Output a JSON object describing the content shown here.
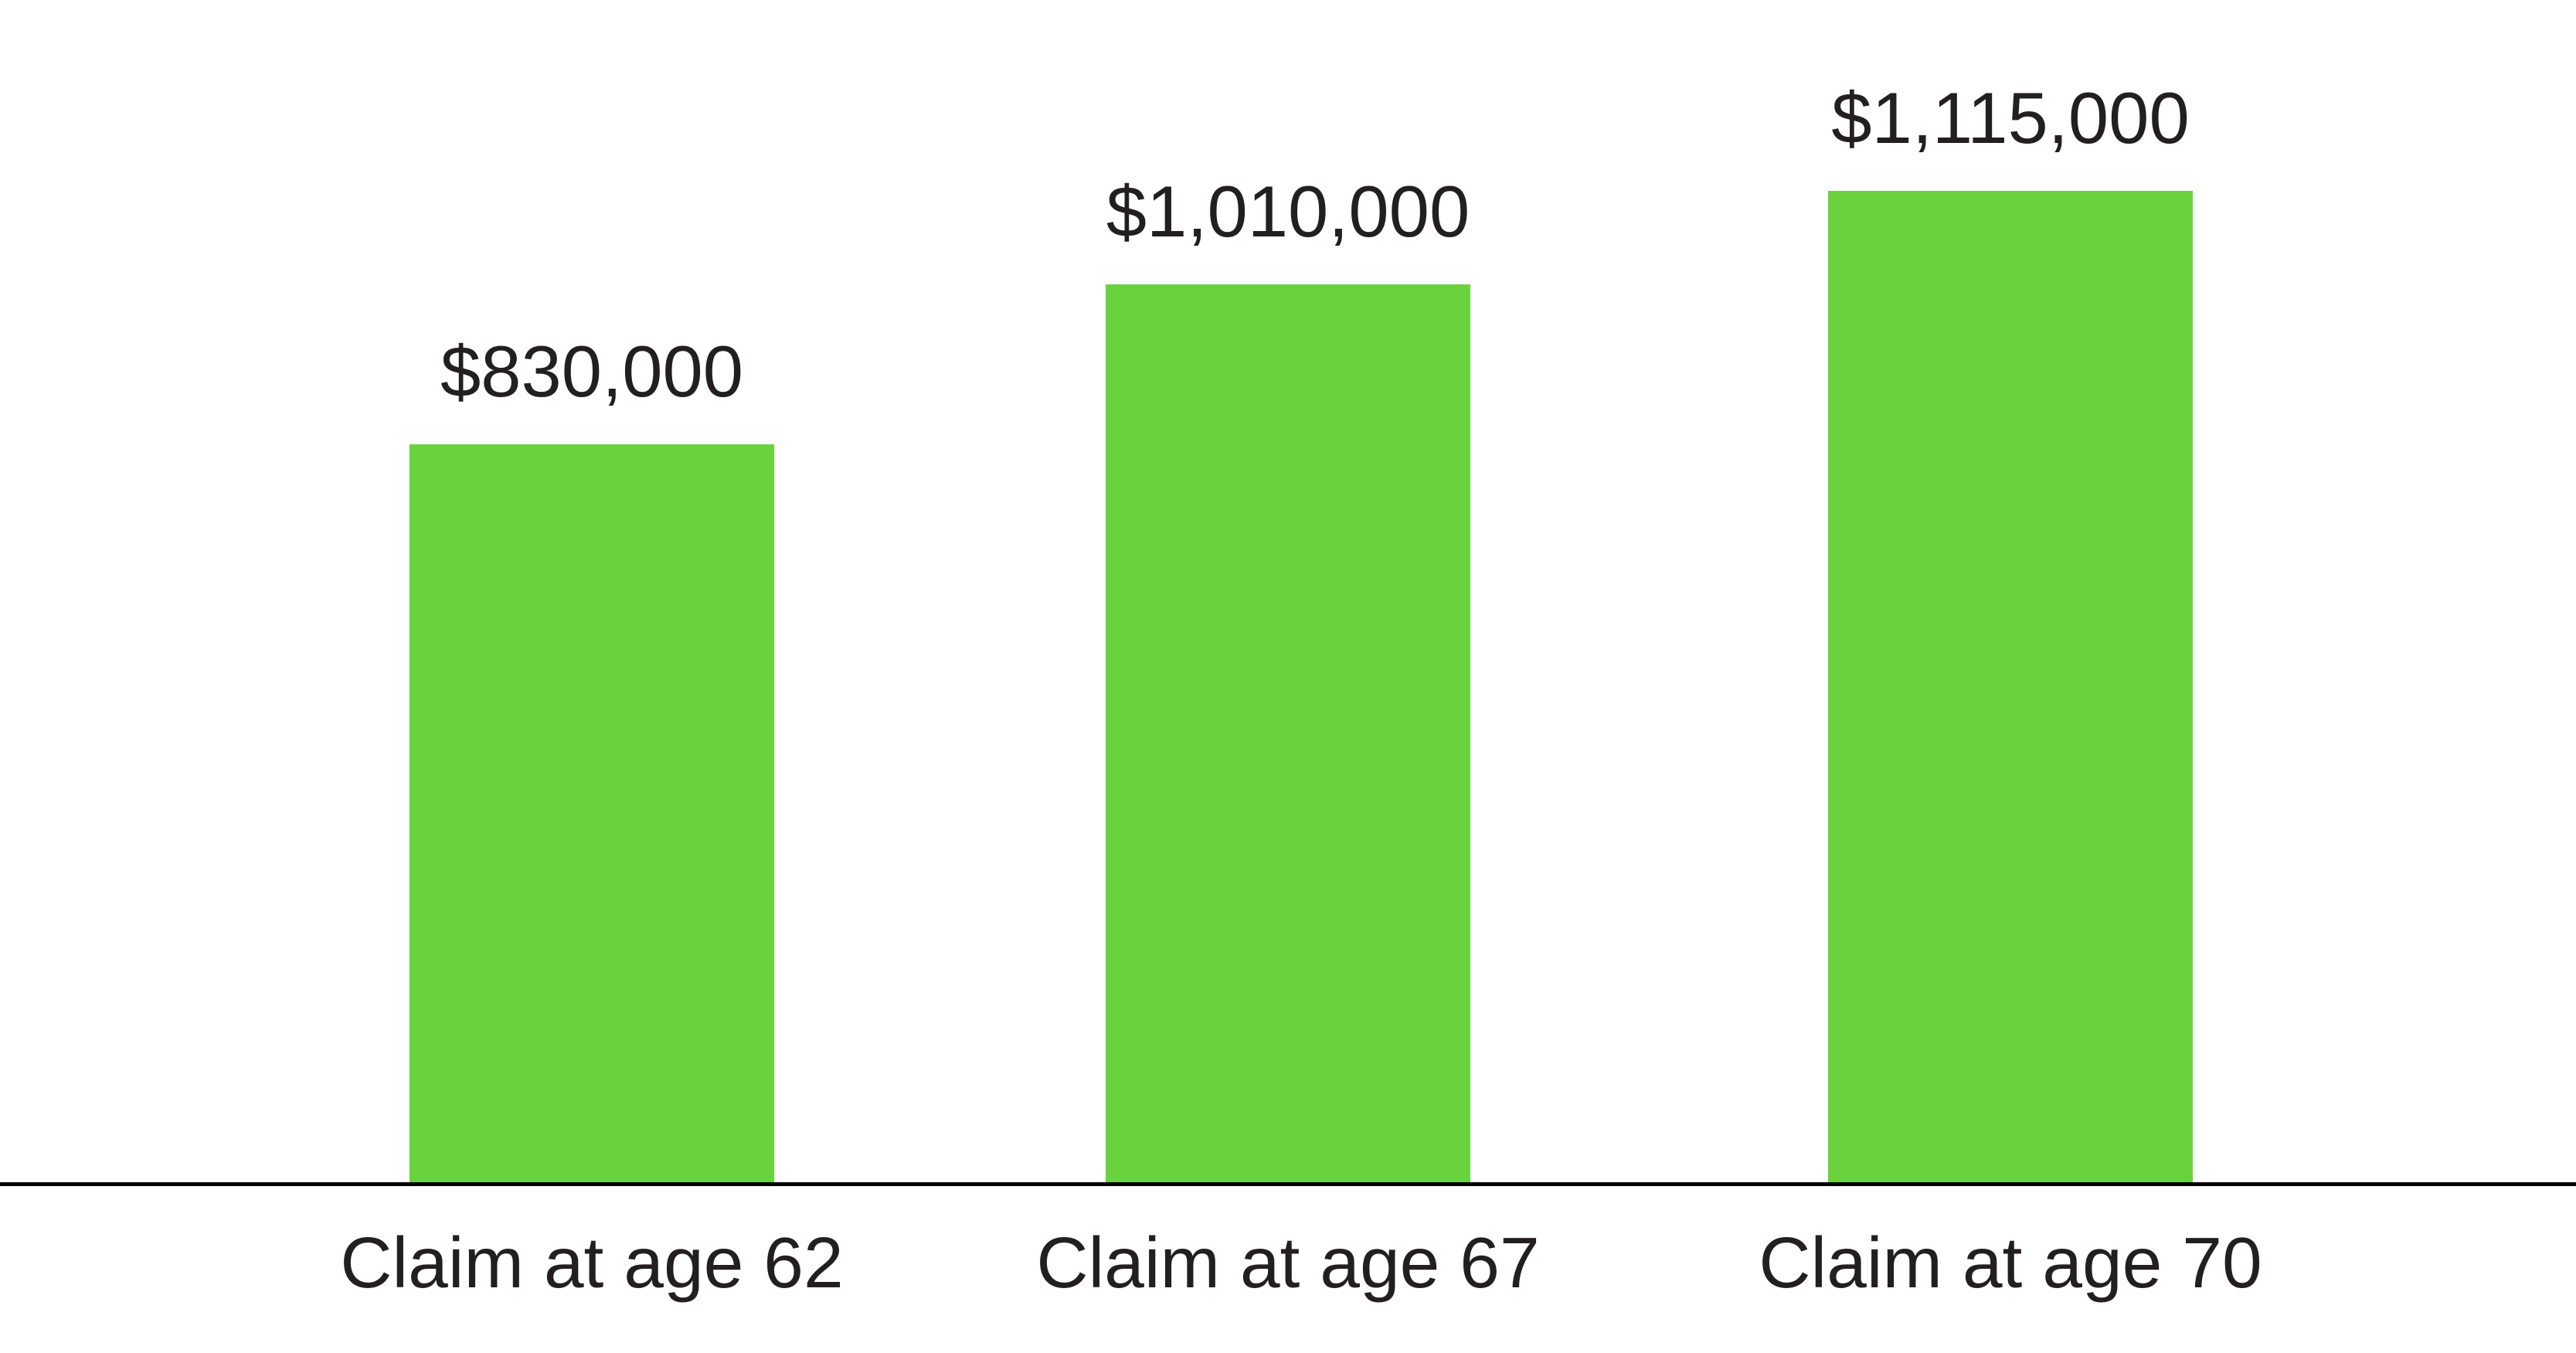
{
  "chart_data": {
    "type": "bar",
    "title": "",
    "xlabel": "",
    "ylabel": "",
    "categories": [
      "Claim at age 62",
      "Claim at age 67",
      "Claim at age 70"
    ],
    "values": [
      830000,
      1010000,
      1115000
    ],
    "value_labels": [
      "$830,000",
      "$1,010,000",
      "$1,115,000"
    ],
    "ylim": [
      0,
      1330000
    ],
    "grid": false,
    "legend": false,
    "value_labels_position": "above-bars",
    "bar_color": "#69d23c",
    "label_color": "#231f20",
    "axis_color": "#000000",
    "background_color": "#ffffff"
  }
}
